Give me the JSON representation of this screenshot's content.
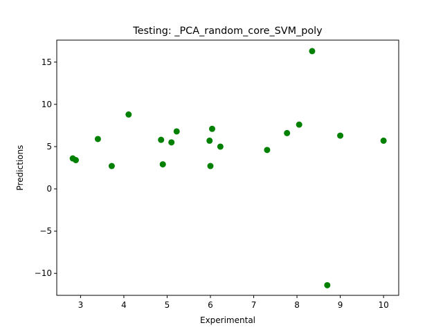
{
  "chart_data": {
    "type": "scatter",
    "title": "Testing: _PCA_random_core_SVM_poly",
    "xlabel": "Experimental",
    "ylabel": "Predictions",
    "xlim": [
      2.45,
      10.35
    ],
    "ylim": [
      -12.6,
      17.6
    ],
    "xticks": [
      3,
      4,
      5,
      6,
      7,
      8,
      9,
      10
    ],
    "yticks": [
      -10,
      -5,
      0,
      5,
      10,
      15
    ],
    "ytick_labels": [
      "−10",
      "−5",
      "0",
      "5",
      "10",
      "15"
    ],
    "grid": false,
    "marker_color": "#008000",
    "points": [
      {
        "x": 2.82,
        "y": 3.6
      },
      {
        "x": 2.89,
        "y": 3.4
      },
      {
        "x": 3.4,
        "y": 5.9
      },
      {
        "x": 3.72,
        "y": 2.7
      },
      {
        "x": 4.11,
        "y": 8.8
      },
      {
        "x": 4.86,
        "y": 5.8
      },
      {
        "x": 4.9,
        "y": 2.9
      },
      {
        "x": 5.1,
        "y": 5.5
      },
      {
        "x": 5.22,
        "y": 6.8
      },
      {
        "x": 5.98,
        "y": 5.7
      },
      {
        "x": 6.0,
        "y": 2.7
      },
      {
        "x": 6.04,
        "y": 7.1
      },
      {
        "x": 6.23,
        "y": 5.0
      },
      {
        "x": 7.31,
        "y": 4.6
      },
      {
        "x": 7.77,
        "y": 6.6
      },
      {
        "x": 8.05,
        "y": 7.6
      },
      {
        "x": 8.35,
        "y": 16.3
      },
      {
        "x": 8.7,
        "y": -11.4
      },
      {
        "x": 9.0,
        "y": 6.3
      },
      {
        "x": 10.0,
        "y": 5.7
      }
    ]
  }
}
